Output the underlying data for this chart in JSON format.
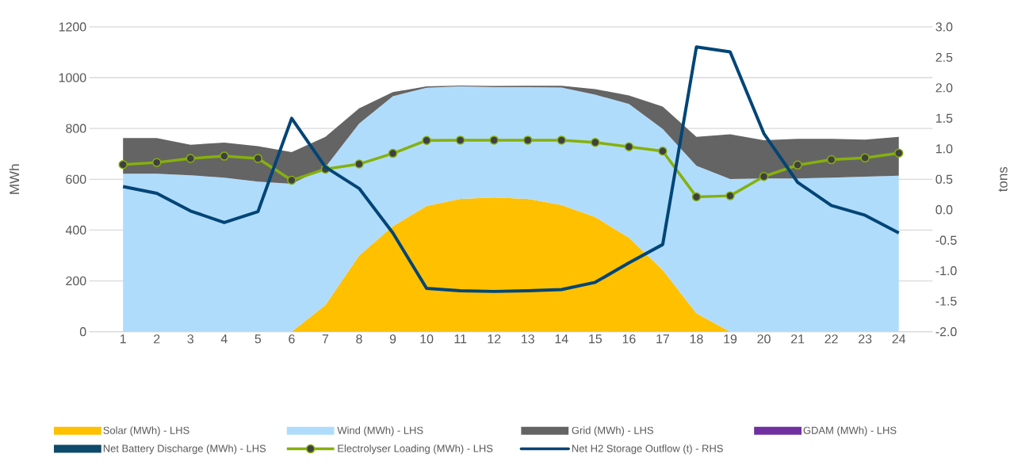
{
  "chart_data": {
    "type": "area",
    "stacked": true,
    "ylabel": "MWh",
    "y2label": "tons",
    "grid": "y",
    "legend": "bottom",
    "categories": [
      "1",
      "2",
      "3",
      "4",
      "5",
      "6",
      "7",
      "8",
      "9",
      "10",
      "11",
      "12",
      "13",
      "14",
      "15",
      "16",
      "17",
      "18",
      "19",
      "20",
      "21",
      "22",
      "23",
      "24"
    ],
    "ylim": [
      0,
      1200
    ],
    "yticks": [
      0,
      200,
      400,
      600,
      800,
      1000,
      1200
    ],
    "y2lim": [
      -2,
      3
    ],
    "y2ticks": [
      {
        "value": -2,
        "label": "-2.0"
      },
      {
        "value": -1.5,
        "label": "-1.5"
      },
      {
        "value": -1,
        "label": "-1.0"
      },
      {
        "value": -0.5,
        "label": "-0.5"
      },
      {
        "value": 0,
        "label": "0.0"
      },
      {
        "value": 0.5,
        "label": "0.5"
      },
      {
        "value": 1,
        "label": "1.0"
      },
      {
        "value": 1.5,
        "label": "1.5"
      },
      {
        "value": 2,
        "label": "2.0"
      },
      {
        "value": 2.5,
        "label": "2.5"
      },
      {
        "value": 3,
        "label": "3.0"
      }
    ],
    "series": [
      {
        "name": "Solar (MWh) - LHS",
        "color": "#ffc000",
        "values": [
          0,
          0,
          0,
          0,
          0,
          0,
          105,
          300,
          415,
          495,
          523,
          528,
          523,
          499,
          451,
          370,
          243,
          72,
          0,
          0,
          0,
          0,
          0,
          0
        ]
      },
      {
        "name": "Wind (MWh) - LHS",
        "color": "#b0dcfc",
        "values": [
          622,
          622,
          616,
          606,
          591,
          582,
          543,
          519,
          512,
          465,
          443,
          435,
          440,
          462,
          482,
          526,
          555,
          581,
          601,
          603,
          603,
          606,
          610,
          614
        ]
      },
      {
        "name": "Grid (MWh) - LHS",
        "color": "#646464",
        "values": [
          140,
          140,
          120,
          138,
          139,
          125,
          119,
          60,
          16,
          6,
          3,
          4,
          5,
          7,
          22,
          34,
          88,
          114,
          176,
          151,
          156,
          153,
          146,
          153
        ]
      },
      {
        "name": "GDAM (MWh) - LHS",
        "color": "#7030a0",
        "values": [
          null,
          null,
          null,
          null,
          null,
          null,
          null,
          null,
          null,
          null,
          null,
          null,
          null,
          null,
          null,
          null,
          null,
          null,
          null,
          null,
          null,
          null,
          null,
          null
        ]
      },
      {
        "name": "Net Battery Discharge (MWh) - LHS",
        "color": "#0d4a6b",
        "values": [
          null,
          null,
          null,
          null,
          null,
          null,
          null,
          null,
          null,
          null,
          null,
          null,
          null,
          null,
          null,
          null,
          null,
          null,
          null,
          null,
          null,
          null,
          null,
          null
        ]
      },
      {
        "name": "Electrolyser Loading (MWh) - LHS",
        "type": "line",
        "marker": "circle",
        "color": "#86b00c",
        "values": [
          658,
          666,
          682,
          691,
          682,
          596,
          640,
          660,
          702,
          753,
          754,
          754,
          754,
          754,
          745,
          728,
          711,
          531,
          535,
          611,
          656,
          677,
          684,
          703
        ]
      },
      {
        "name": "Net H2 Storage Outflow (t) - RHS",
        "type": "line",
        "axis": "y2",
        "color": "#004576",
        "values": [
          0.38,
          0.27,
          -0.02,
          -0.21,
          -0.03,
          1.5,
          0.7,
          0.35,
          -0.38,
          -1.29,
          -1.33,
          -1.34,
          -1.33,
          -1.31,
          -1.19,
          -0.87,
          -0.57,
          2.67,
          2.59,
          1.25,
          0.45,
          0.07,
          -0.09,
          -0.38
        ]
      }
    ]
  }
}
